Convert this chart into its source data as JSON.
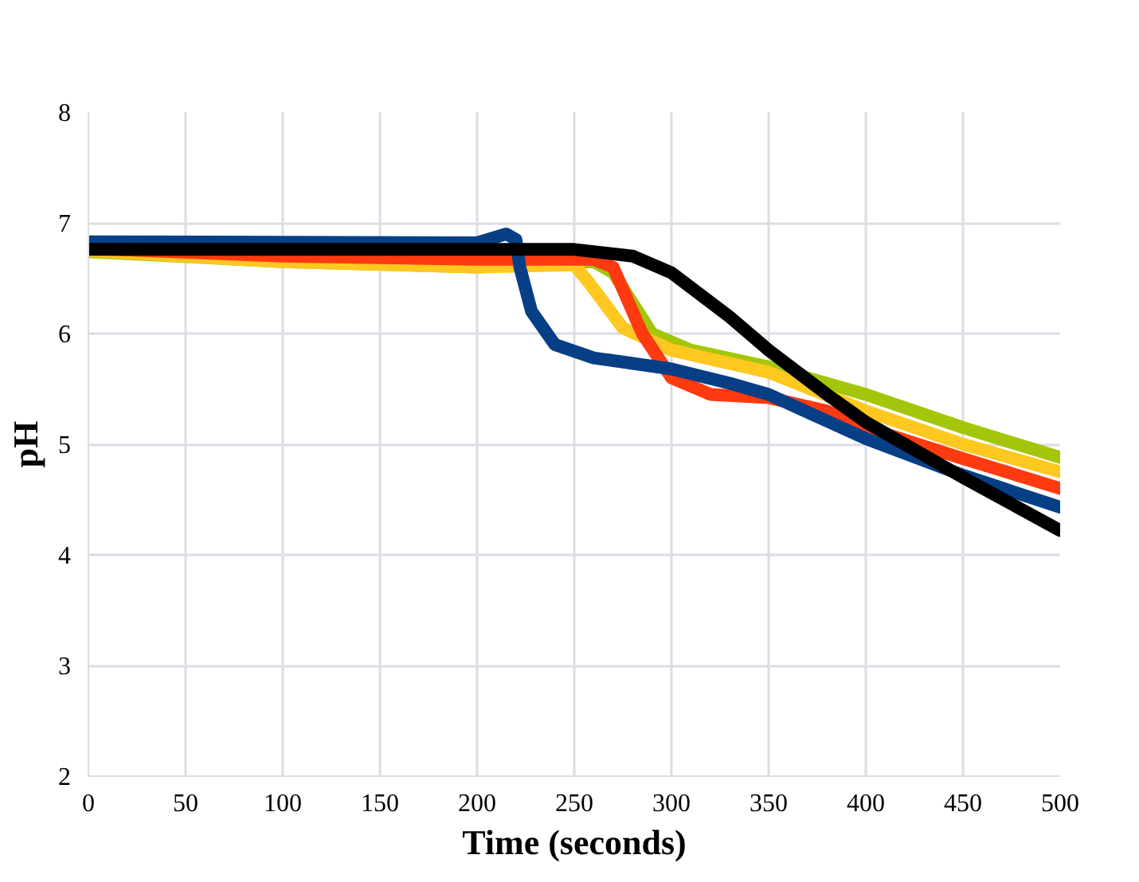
{
  "chart_data": {
    "type": "line",
    "xlabel": "Time (seconds)",
    "ylabel": "pH",
    "xlim": [
      0,
      500
    ],
    "xticks": [
      0,
      50,
      100,
      150,
      200,
      250,
      300,
      350,
      400,
      450,
      500
    ],
    "ylim": [
      2,
      8
    ],
    "yticks": [
      2,
      3,
      4,
      5,
      6,
      7,
      8
    ],
    "grid": true,
    "line_style": "solid",
    "series": [
      {
        "color": "#a3c60a",
        "x": [
          0,
          100,
          200,
          260,
          270,
          290,
          310,
          350,
          400,
          450,
          500
        ],
        "values": [
          6.74,
          6.65,
          6.6,
          6.65,
          6.55,
          6.0,
          5.85,
          5.7,
          5.45,
          5.15,
          4.88
        ]
      },
      {
        "color": "#ffc820",
        "x": [
          0,
          100,
          200,
          250,
          258,
          275,
          300,
          350,
          400,
          450,
          500
        ],
        "values": [
          6.75,
          6.65,
          6.6,
          6.62,
          6.45,
          6.05,
          5.85,
          5.65,
          5.3,
          5.0,
          4.75
        ]
      },
      {
        "color": "#ff3a10",
        "x": [
          0,
          100,
          200,
          260,
          270,
          285,
          300,
          320,
          350,
          380,
          400,
          450,
          500
        ],
        "values": [
          6.77,
          6.7,
          6.67,
          6.67,
          6.6,
          6.0,
          5.6,
          5.45,
          5.42,
          5.3,
          5.15,
          4.87,
          4.6
        ]
      },
      {
        "color": "#063f86",
        "x": [
          0,
          200,
          215,
          220,
          222,
          228,
          240,
          260,
          300,
          330,
          350,
          400,
          450,
          500
        ],
        "values": [
          6.83,
          6.82,
          6.9,
          6.85,
          6.6,
          6.2,
          5.9,
          5.78,
          5.68,
          5.55,
          5.45,
          5.05,
          4.72,
          4.43
        ]
      },
      {
        "color": "#000000",
        "x": [
          0,
          250,
          280,
          300,
          330,
          350,
          380,
          400,
          450,
          500
        ],
        "values": [
          6.76,
          6.76,
          6.7,
          6.55,
          6.15,
          5.85,
          5.45,
          5.2,
          4.7,
          4.22
        ]
      }
    ]
  }
}
